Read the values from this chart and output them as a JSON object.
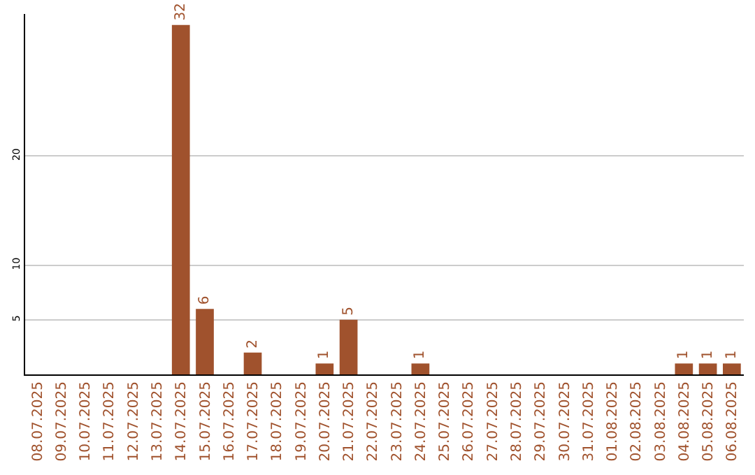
{
  "chart_data": {
    "type": "bar",
    "categories": [
      "08.07.2025",
      "09.07.2025",
      "10.07.2025",
      "11.07.2025",
      "12.07.2025",
      "13.07.2025",
      "14.07.2025",
      "15.07.2025",
      "16.07.2025",
      "17.07.2025",
      "18.07.2025",
      "19.07.2025",
      "20.07.2025",
      "21.07.2025",
      "22.07.2025",
      "23.07.2025",
      "24.07.2025",
      "25.07.2025",
      "26.07.2025",
      "27.07.2025",
      "28.07.2025",
      "29.07.2025",
      "30.07.2025",
      "31.07.2025",
      "01.08.2025",
      "02.08.2025",
      "03.08.2025",
      "04.08.2025",
      "05.08.2025",
      "06.08.2025"
    ],
    "values": [
      0,
      0,
      0,
      0,
      0,
      0,
      32,
      6,
      0,
      2,
      0,
      0,
      1,
      5,
      0,
      0,
      1,
      0,
      0,
      0,
      0,
      0,
      0,
      0,
      0,
      0,
      0,
      1,
      1,
      1
    ],
    "value_labels": [
      null,
      null,
      null,
      null,
      null,
      null,
      "32",
      "6",
      null,
      "2",
      null,
      null,
      "1",
      "5",
      null,
      null,
      "1",
      null,
      null,
      null,
      null,
      null,
      null,
      null,
      null,
      null,
      null,
      "1",
      "1",
      "1"
    ],
    "color": "#a0522d",
    "ylim": [
      0,
      33
    ],
    "yticks": [
      5,
      10,
      20
    ],
    "grid": "y",
    "legend": false
  }
}
